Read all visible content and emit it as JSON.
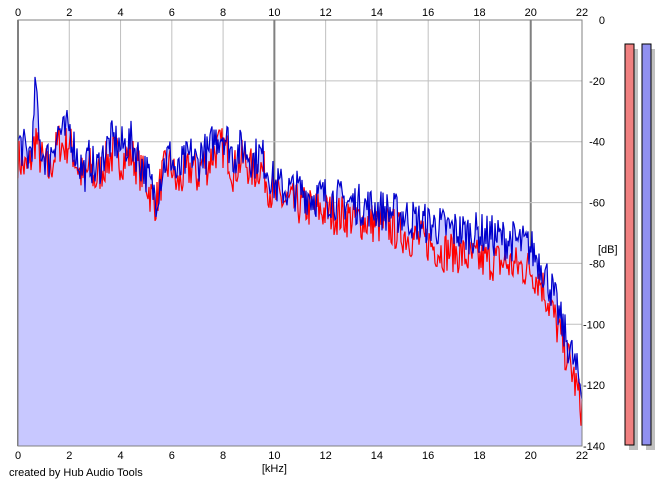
{
  "credit": "created by Hub Audio Tools",
  "colors": {
    "background": "#ffffff",
    "area_fill": "#c8c8ff",
    "grid": "#c0c0c0",
    "major_grid": "#808080",
    "left_channel": "#ff0000",
    "right_channel": "#0000cc",
    "meter_left": "#f08080",
    "meter_right": "#9090f0",
    "meter_shadow": "#c0c0c0"
  },
  "chart_data": {
    "type": "line",
    "title": "",
    "xlabel": "[kHz]",
    "ylabel": "[dB]",
    "xlim": [
      0,
      22
    ],
    "ylim": [
      -140,
      0
    ],
    "x_ticks": [
      "0",
      "2",
      "4",
      "6",
      "8",
      "10",
      "12",
      "14",
      "16",
      "18",
      "20",
      "22"
    ],
    "y_ticks": [
      "0",
      "-20",
      "-40",
      "-60",
      "-80",
      "-100",
      "-120",
      "-140"
    ],
    "y_tick_values": [
      0,
      -20,
      -40,
      -60,
      -80,
      -100,
      -120,
      -140
    ],
    "major_x_lines": [
      0,
      10,
      20
    ],
    "grid": true,
    "series": [
      {
        "color": "#ff0000",
        "x": [
          0,
          0.2,
          0.4,
          0.6,
          0.7,
          0.8,
          1.0,
          1.2,
          1.4,
          1.6,
          1.8,
          2.0,
          2.2,
          2.4,
          2.6,
          2.8,
          3.0,
          3.2,
          3.4,
          3.6,
          3.8,
          4.0,
          4.2,
          4.4,
          4.6,
          4.8,
          5.0,
          5.2,
          5.4,
          5.6,
          5.8,
          6.0,
          6.2,
          6.4,
          6.6,
          6.8,
          7.0,
          7.2,
          7.4,
          7.6,
          7.8,
          8.0,
          8.2,
          8.4,
          8.6,
          8.8,
          9.0,
          9.2,
          9.4,
          9.6,
          9.8,
          10.0,
          10.5,
          11.0,
          11.5,
          12.0,
          12.5,
          13.0,
          13.5,
          14.0,
          14.5,
          15.0,
          15.5,
          16.0,
          16.5,
          17.0,
          17.5,
          18.0,
          18.5,
          19.0,
          19.5,
          20.0,
          20.4,
          20.8,
          21.2,
          21.6,
          22.0
        ],
        "values": [
          -45,
          -48,
          -50,
          -42,
          -38,
          -44,
          -47,
          -50,
          -45,
          -40,
          -42,
          -40,
          -45,
          -50,
          -52,
          -48,
          -53,
          -50,
          -47,
          -45,
          -44,
          -46,
          -45,
          -44,
          -47,
          -50,
          -53,
          -58,
          -60,
          -52,
          -48,
          -48,
          -55,
          -52,
          -50,
          -48,
          -52,
          -46,
          -48,
          -44,
          -42,
          -42,
          -44,
          -50,
          -47,
          -46,
          -48,
          -50,
          -48,
          -50,
          -55,
          -58,
          -60,
          -61,
          -62,
          -63,
          -64,
          -65,
          -66,
          -67,
          -68,
          -70,
          -72,
          -73,
          -76,
          -76,
          -78,
          -79,
          -79,
          -80,
          -81,
          -82,
          -86,
          -95,
          -105,
          -115,
          -128
        ]
      },
      {
        "color": "#0000cc",
        "x": [
          0,
          0.2,
          0.4,
          0.6,
          0.7,
          0.8,
          1.0,
          1.2,
          1.4,
          1.6,
          1.8,
          2.0,
          2.2,
          2.4,
          2.6,
          2.8,
          3.0,
          3.2,
          3.4,
          3.6,
          3.8,
          4.0,
          4.2,
          4.4,
          4.6,
          4.8,
          5.0,
          5.2,
          5.4,
          5.6,
          5.8,
          6.0,
          6.2,
          6.4,
          6.6,
          6.8,
          7.0,
          7.2,
          7.4,
          7.6,
          7.8,
          8.0,
          8.2,
          8.4,
          8.6,
          8.8,
          9.0,
          9.2,
          9.4,
          9.6,
          9.8,
          10.0,
          10.5,
          11.0,
          11.5,
          12.0,
          12.5,
          13.0,
          13.5,
          14.0,
          14.5,
          15.0,
          15.5,
          16.0,
          16.5,
          17.0,
          17.5,
          18.0,
          18.5,
          19.0,
          19.5,
          20.0,
          20.4,
          20.8,
          21.2,
          21.6,
          22.0
        ],
        "values": [
          -40,
          -42,
          -45,
          -38,
          -18,
          -40,
          -44,
          -46,
          -40,
          -36,
          -38,
          -35,
          -42,
          -47,
          -50,
          -45,
          -50,
          -47,
          -43,
          -40,
          -40,
          -42,
          -41,
          -40,
          -43,
          -47,
          -50,
          -55,
          -58,
          -50,
          -45,
          -45,
          -52,
          -48,
          -46,
          -44,
          -48,
          -42,
          -45,
          -40,
          -38,
          -37,
          -40,
          -45,
          -43,
          -42,
          -44,
          -46,
          -44,
          -46,
          -50,
          -54,
          -56,
          -56,
          -58,
          -58,
          -59,
          -60,
          -61,
          -62,
          -63,
          -64,
          -66,
          -67,
          -68,
          -69,
          -70,
          -70,
          -71,
          -72,
          -73,
          -75,
          -80,
          -88,
          -100,
          -110,
          -122
        ]
      }
    ]
  }
}
